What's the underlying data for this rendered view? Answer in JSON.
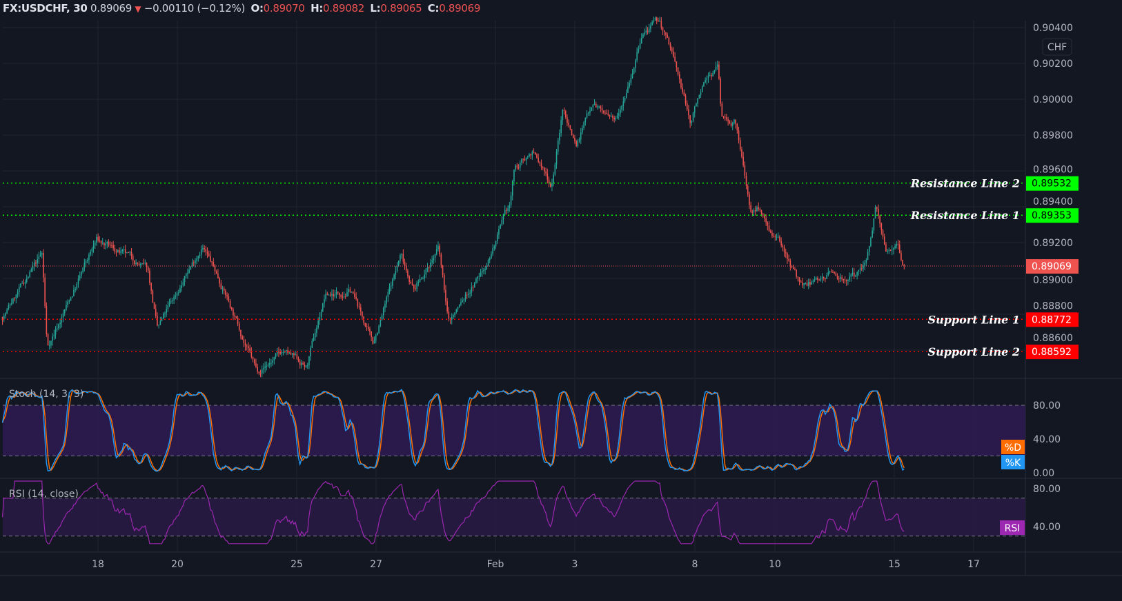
{
  "legend": {
    "symbol": "FX:USDCHF, 30",
    "last": "0.89069",
    "direction_icon": "triangle-down",
    "change": "−0.00110 (−0.12%)",
    "o_label": "O:",
    "o": "0.89070",
    "h_label": "H:",
    "h": "0.89082",
    "l_label": "L:",
    "l": "0.89065",
    "c_label": "C:",
    "c": "0.89069"
  },
  "currency_badge": "CHF",
  "colors": {
    "background": "#131722",
    "up": "#26a69a",
    "down": "#ef5350",
    "resistance": "#00ff00",
    "support": "#ff0000",
    "last_price": "#ef5350",
    "stoch_k": "#2196f3",
    "stoch_d": "#ff6d00",
    "rsi": "#9c27b0"
  },
  "chart_data": {
    "type": "candlestick",
    "title": "FX:USDCHF, 30",
    "price_axis": {
      "ylim": [
        0.8842,
        0.9044
      ],
      "ticks": [
        "0.90400",
        "0.90200",
        "0.90000",
        "0.89800",
        "0.89600",
        "0.89400",
        "0.89200",
        "0.89000",
        "0.88800",
        "0.88600"
      ]
    },
    "time_axis": {
      "ticks": [
        {
          "date": "Jan 18",
          "label": "18"
        },
        {
          "date": "Jan 20",
          "label": "20"
        },
        {
          "date": "Jan 25",
          "label": "25"
        },
        {
          "date": "Jan 27",
          "label": "27"
        },
        {
          "date": "Feb 1",
          "label": "Feb"
        },
        {
          "date": "Feb 3",
          "label": "3"
        },
        {
          "date": "Feb 8",
          "label": "8"
        },
        {
          "date": "Feb 10",
          "label": "10"
        },
        {
          "date": "Feb 15",
          "label": "15"
        },
        {
          "date": "Feb 17",
          "label": "17"
        }
      ]
    },
    "grid": true,
    "price_path": [
      [
        "Jan 13 14:00",
        0.88785
      ],
      [
        "Jan 14 14:00",
        0.8913
      ],
      [
        "Jan 14 17:00",
        0.8861
      ],
      [
        "Jan 15 23:00",
        0.8921
      ],
      [
        "Jan 19 06:00",
        0.8905
      ],
      [
        "Jan 19 12:00",
        0.8871
      ],
      [
        "Jan 20 15:00",
        0.8919
      ],
      [
        "Jan 21 06:00",
        0.889
      ],
      [
        "Jan 22 00:00",
        0.8848
      ],
      [
        "Jan 22 16:00",
        0.8859
      ],
      [
        "Jan 25 06:00",
        0.885
      ],
      [
        "Jan 25 17:00",
        0.889
      ],
      [
        "Jan 26 09:00",
        0.8894
      ],
      [
        "Jan 26 22:00",
        0.8863
      ],
      [
        "Jan 27 15:00",
        0.8913
      ],
      [
        "Jan 27 23:00",
        0.8894
      ],
      [
        "Jan 28 14:00",
        0.8917
      ],
      [
        "Jan 28 20:00",
        0.8875
      ],
      [
        "Jan 29 17:00",
        0.8905
      ],
      [
        "Feb 1 09:00",
        0.894
      ],
      [
        "Feb 1 11:00",
        0.8959
      ],
      [
        "Feb 1 22:00",
        0.8971
      ],
      [
        "Feb 2 10:00",
        0.8952
      ],
      [
        "Feb 2 17:00",
        0.8994
      ],
      [
        "Feb 3 01:00",
        0.8975
      ],
      [
        "Feb 3 11:00",
        0.9
      ],
      [
        "Feb 4 00:00",
        0.8986
      ],
      [
        "Feb 4 17:00",
        0.9036
      ],
      [
        "Feb 5 03:00",
        0.9043
      ],
      [
        "Feb 5 11:00",
        0.9025
      ],
      [
        "Feb 5 22:00",
        0.8986
      ],
      [
        "Feb 8 03:00",
        0.9005
      ],
      [
        "Feb 8 14:00",
        0.9019
      ],
      [
        "Feb 8 16:00",
        0.899
      ],
      [
        "Feb 9 00:00",
        0.8988
      ],
      [
        "Feb 9 10:00",
        0.8936
      ],
      [
        "Feb 9 15:00",
        0.894
      ],
      [
        "Feb 9 23:00",
        0.8925
      ],
      [
        "Feb 10 09:00",
        0.891
      ],
      [
        "Feb 10 17:00",
        0.8894
      ],
      [
        "Feb 11 08:00",
        0.8903
      ],
      [
        "Feb 12 01:00",
        0.89
      ],
      [
        "Feb 12 07:00",
        0.8909
      ],
      [
        "Feb 12 13:00",
        0.894
      ],
      [
        "Feb 12 19:00",
        0.8912
      ],
      [
        "Feb 15 02:00",
        0.8923
      ],
      [
        "Feb 15 06:00",
        0.89069
      ]
    ],
    "last_price": {
      "value": 0.89069,
      "label": "0.89069"
    },
    "horizontal_lines": [
      {
        "name": "Resistance Line 2",
        "value": 0.89532,
        "label": "0.89532",
        "kind": "resistance"
      },
      {
        "name": "Resistance Line 1",
        "value": 0.89353,
        "label": "0.89353",
        "kind": "resistance"
      },
      {
        "name": "Support Line 1",
        "value": 0.88772,
        "label": "0.88772",
        "kind": "support"
      },
      {
        "name": "Support Line 2",
        "value": 0.88592,
        "label": "0.88592",
        "kind": "support"
      }
    ],
    "indicators": [
      {
        "title": "Stoch (14, 3, 3)",
        "ylim": [
          0,
          100
        ],
        "ticks": [
          "80.00",
          "40.00",
          "0.00"
        ],
        "bands": [
          20,
          80
        ],
        "series": [
          {
            "name": "%D",
            "color": "#ff6d00"
          },
          {
            "name": "%K",
            "color": "#2196f3"
          }
        ]
      },
      {
        "title": "RSI (14, close)",
        "ylim": [
          20,
          90
        ],
        "ticks": [
          "80.00",
          "40.00"
        ],
        "bands": [
          30,
          70
        ],
        "series": [
          {
            "name": "RSI",
            "color": "#9c27b0"
          }
        ]
      }
    ]
  }
}
